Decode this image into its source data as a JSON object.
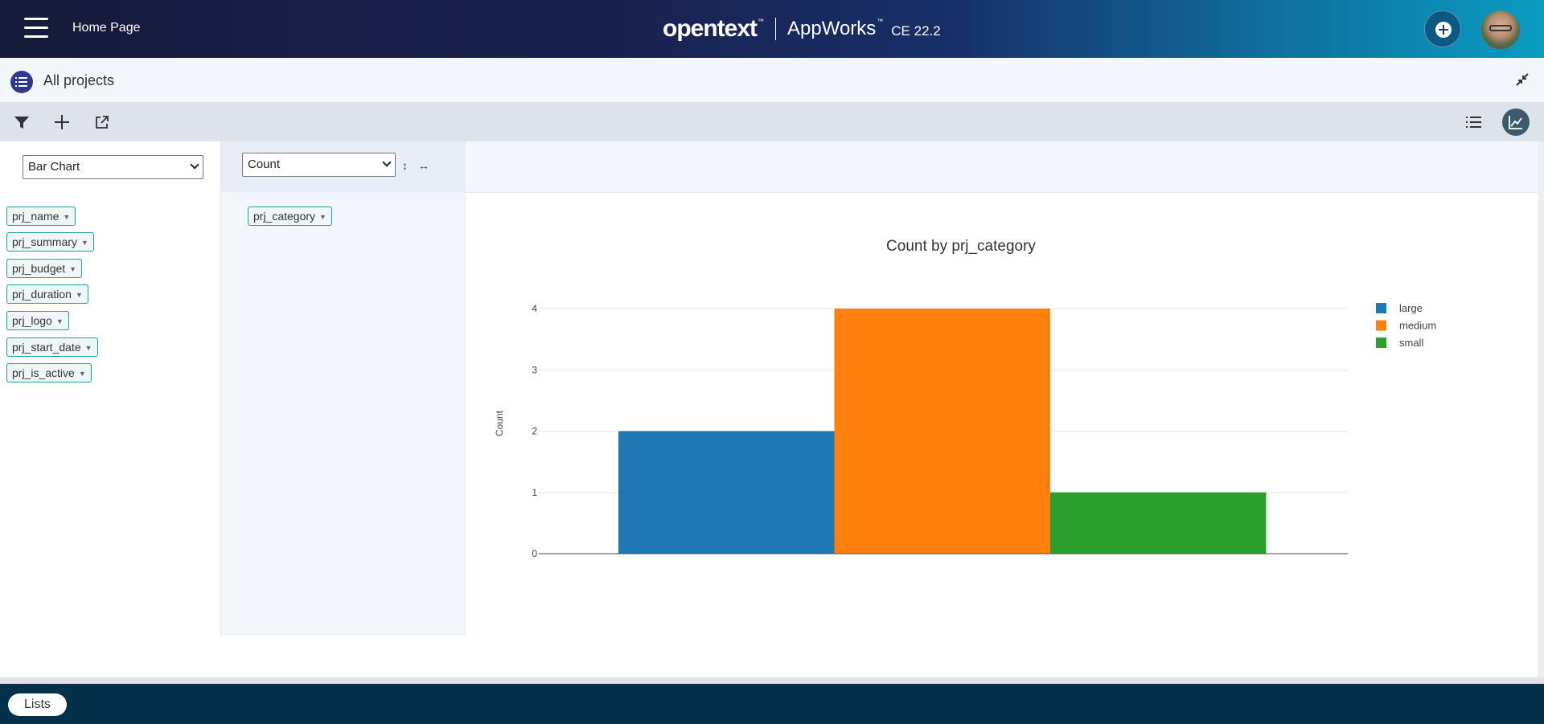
{
  "header": {
    "home_label": "Home Page",
    "brand_logo": "opentext",
    "brand_tm": "™",
    "brand_product": "AppWorks",
    "brand_version": "CE 22.2"
  },
  "subheader": {
    "title": "All projects"
  },
  "toolbar": {
    "icons": [
      "filter-icon",
      "add-icon",
      "open-external-icon",
      "list-view-icon",
      "chart-view-icon"
    ]
  },
  "chart_type_select": {
    "value": "Bar Chart"
  },
  "aggregator_select": {
    "value": "Count"
  },
  "fields": [
    {
      "label": "prj_name"
    },
    {
      "label": "prj_summary"
    },
    {
      "label": "prj_budget"
    },
    {
      "label": "prj_duration"
    },
    {
      "label": "prj_logo"
    },
    {
      "label": "prj_start_date"
    },
    {
      "label": "prj_is_active"
    }
  ],
  "row_fields": [
    {
      "label": "prj_category"
    }
  ],
  "chart_data": {
    "type": "bar",
    "title": "Count by prj_category",
    "ylabel": "Count",
    "xlabel": "",
    "ylim": [
      0,
      4
    ],
    "yticks": [
      "0",
      "1",
      "2",
      "3",
      "4"
    ],
    "grid": true,
    "legend_position": "right",
    "series": [
      {
        "name": "large",
        "value": 2,
        "color": "#1f77b4"
      },
      {
        "name": "medium",
        "value": 4,
        "color": "#ff7f0e"
      },
      {
        "name": "small",
        "value": 1,
        "color": "#2ca02c"
      }
    ]
  },
  "footer": {
    "lists_label": "Lists"
  }
}
